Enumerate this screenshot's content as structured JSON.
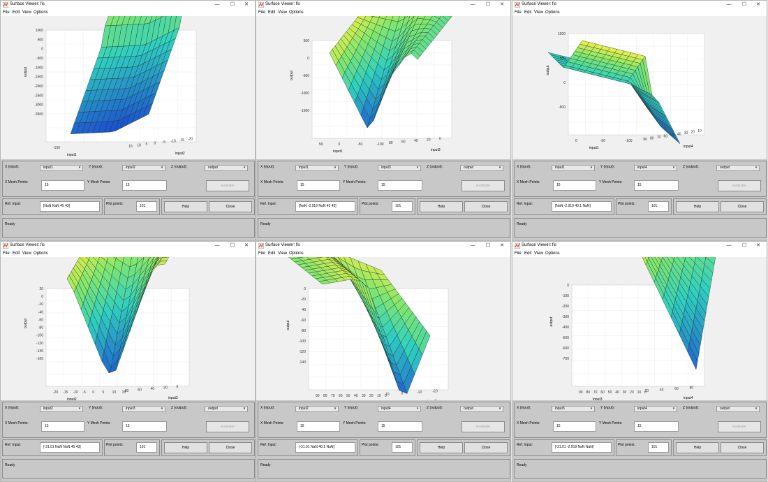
{
  "common": {
    "title": "Surface Viewer: fis",
    "menu": [
      "File",
      "Edit",
      "View",
      "Options"
    ],
    "labels": {
      "x": "X (input):",
      "y": "Y (input):",
      "z": "Z (output):",
      "xmesh": "X Mesh Points:",
      "ymesh": "Y Mesh Points:",
      "ref": "Ref. Input:",
      "plotpts": "Plot points:"
    },
    "buttons": {
      "evaluate": "Evaluate",
      "help": "Help",
      "close": "Close"
    },
    "zlabel": "output",
    "colors": {
      "surface_low": "#1f5fd0",
      "surface_mid": "#30d0c0",
      "surface_high": "#f2ef45",
      "panel": "#c8c8c8"
    }
  },
  "windows": [
    {
      "x_input": "input1",
      "y_input": "input2",
      "z_output": "output",
      "x_mesh": "15",
      "y_mesh": "15",
      "ref_input": "[NaN NaN 45 43]",
      "plot_points": "101",
      "status": "Ready",
      "axis1_label": "input1",
      "axis2_label": "input2",
      "zticks": [
        "1000",
        "500",
        "0",
        "-500",
        "-1000",
        "-1500",
        "-2000",
        "-2500",
        "-3000",
        "-3500"
      ],
      "axis1_ticks": [
        "-100"
      ],
      "axis2_ticks": [
        "15",
        "10",
        "5",
        "0",
        "-5",
        "-10",
        "-15",
        "-20"
      ]
    },
    {
      "x_input": "input1",
      "y_input": "input3",
      "z_output": "output",
      "x_mesh": "15",
      "y_mesh": "15",
      "ref_input": "[NaN -2.919 NaN 45 43]",
      "plot_points": "101",
      "status": "Ready",
      "axis1_label": "input1",
      "axis2_label": "input3",
      "zticks": [
        "500",
        "0",
        "-500",
        "-1000",
        "-1500"
      ],
      "axis1_ticks": [
        "50",
        "0",
        "-50",
        "-100"
      ],
      "axis2_ticks": [
        "80",
        "60",
        "40",
        "20",
        "0"
      ]
    },
    {
      "x_input": "input1",
      "y_input": "input4",
      "z_output": "output",
      "x_mesh": "15",
      "y_mesh": "15",
      "ref_input": "[NaN -2.919 40.1 NaN]",
      "plot_points": "101",
      "status": "Ready",
      "axis1_label": "input1",
      "axis2_label": "input4",
      "zticks": [
        "1000",
        "500",
        "0",
        "-500"
      ],
      "axis1_ticks": [
        "0",
        "-50",
        "-100"
      ],
      "axis2_ticks": [
        "90",
        "80",
        "70",
        "60",
        "50",
        "40",
        "30",
        "20",
        "10"
      ]
    },
    {
      "x_input": "input2",
      "y_input": "input3",
      "z_output": "output",
      "x_mesh": "15",
      "y_mesh": "15",
      "ref_input": "[-31.01 NaN NaN 45 43]",
      "plot_points": "101",
      "status": "Ready",
      "axis1_label": "input2",
      "axis2_label": "input3",
      "zticks": [
        "20",
        "0",
        "-20",
        "-40",
        "-60",
        "-80",
        "-100",
        "-120",
        "-140",
        "-160"
      ],
      "axis1_ticks": [
        "-20",
        "-15",
        "-10",
        "-5",
        "0",
        "5",
        "10",
        "15"
      ],
      "axis2_ticks": [
        "80",
        "60",
        "40",
        "20",
        "0"
      ]
    },
    {
      "x_input": "input2",
      "y_input": "input4",
      "z_output": "output",
      "x_mesh": "15",
      "y_mesh": "15",
      "ref_input": "[-31.01 NaN 40.1 NaN]",
      "plot_points": "101",
      "status": "Ready",
      "axis1_label": "input4",
      "axis2_label": "input2",
      "zticks": [
        "0",
        "-20",
        "-40",
        "-60",
        "-80",
        "-100",
        "-120",
        "-140"
      ],
      "axis1_ticks": [
        "90",
        "80",
        "70",
        "60",
        "50",
        "40",
        "30",
        "20",
        "10",
        "0"
      ],
      "axis2_ticks": [
        "10",
        "0",
        "-10",
        "-20"
      ]
    },
    {
      "x_input": "input3",
      "y_input": "input4",
      "z_output": "output",
      "x_mesh": "15",
      "y_mesh": "15",
      "ref_input": "[-31.01 -2.919 NaN NaN]",
      "plot_points": "101",
      "status": "Ready",
      "axis1_label": "input3",
      "axis2_label": "input4",
      "zticks": [
        "0",
        "-100",
        "-200",
        "-300",
        "-400",
        "-500",
        "-600",
        "-700"
      ],
      "axis1_ticks": [
        "90",
        "80",
        "70",
        "60",
        "50",
        "40",
        "30",
        "20",
        "10",
        "0"
      ],
      "axis2_ticks": [
        "20",
        "40",
        "60",
        "80"
      ]
    }
  ]
}
